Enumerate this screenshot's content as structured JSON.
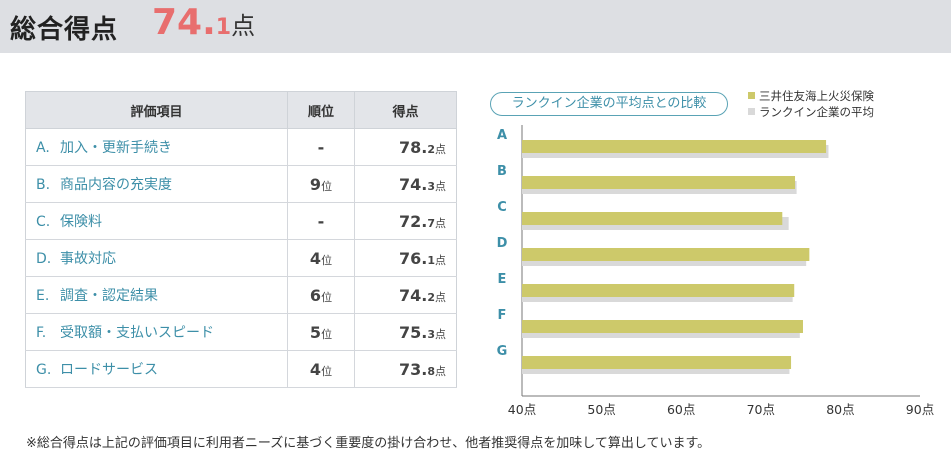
{
  "header": {
    "title": "総合得点",
    "score_int": "74.",
    "score_dec": "1",
    "score_unit": "点"
  },
  "table": {
    "col_item": "評価項目",
    "col_rank": "順位",
    "col_score": "得点",
    "rows": [
      {
        "letter": "A.",
        "label": "加入・更新手続き",
        "rank": "-",
        "rank_unit": "",
        "score_int": "78.",
        "score_dec": "2",
        "score_unit": "点"
      },
      {
        "letter": "B.",
        "label": "商品内容の充実度",
        "rank": "9",
        "rank_unit": "位",
        "score_int": "74.",
        "score_dec": "3",
        "score_unit": "点"
      },
      {
        "letter": "C.",
        "label": "保険料",
        "rank": "-",
        "rank_unit": "",
        "score_int": "72.",
        "score_dec": "7",
        "score_unit": "点"
      },
      {
        "letter": "D.",
        "label": "事故対応",
        "rank": "4",
        "rank_unit": "位",
        "score_int": "76.",
        "score_dec": "1",
        "score_unit": "点"
      },
      {
        "letter": "E.",
        "label": "調査・認定結果",
        "rank": "6",
        "rank_unit": "位",
        "score_int": "74.",
        "score_dec": "2",
        "score_unit": "点"
      },
      {
        "letter": "F.",
        "label": "受取額・支払いスピード",
        "rank": "5",
        "rank_unit": "位",
        "score_int": "75.",
        "score_dec": "3",
        "score_unit": "点"
      },
      {
        "letter": "G.",
        "label": "ロードサービス",
        "rank": "4",
        "rank_unit": "位",
        "score_int": "73.",
        "score_dec": "8",
        "score_unit": "点"
      }
    ]
  },
  "comparison_title": "ランクイン企業の平均点との比較",
  "colors": {
    "company": "#cdc96a",
    "average": "#d9d9d9",
    "accent": "#e86e6e",
    "link": "#3d8fa8"
  },
  "chart_data": {
    "type": "bar",
    "orientation": "horizontal",
    "categories": [
      "A",
      "B",
      "C",
      "D",
      "E",
      "F",
      "G"
    ],
    "series": [
      {
        "name": "三井住友海上火災保険",
        "values": [
          78.2,
          74.3,
          72.7,
          76.1,
          74.2,
          75.3,
          73.8
        ]
      },
      {
        "name": "ランクイン企業の平均",
        "values": [
          78.5,
          74.5,
          73.5,
          75.7,
          74.0,
          74.9,
          73.6
        ]
      }
    ],
    "xlim": [
      40,
      90
    ],
    "x_ticks": [
      "40点",
      "50点",
      "60点",
      "70点",
      "80点",
      "90点"
    ],
    "grid": false,
    "legend": "top-right"
  },
  "footnote": "※総合得点は上記の評価項目に利用者ニーズに基づく重要度の掛け合わせ、他者推奨得点を加味して算出しています。"
}
